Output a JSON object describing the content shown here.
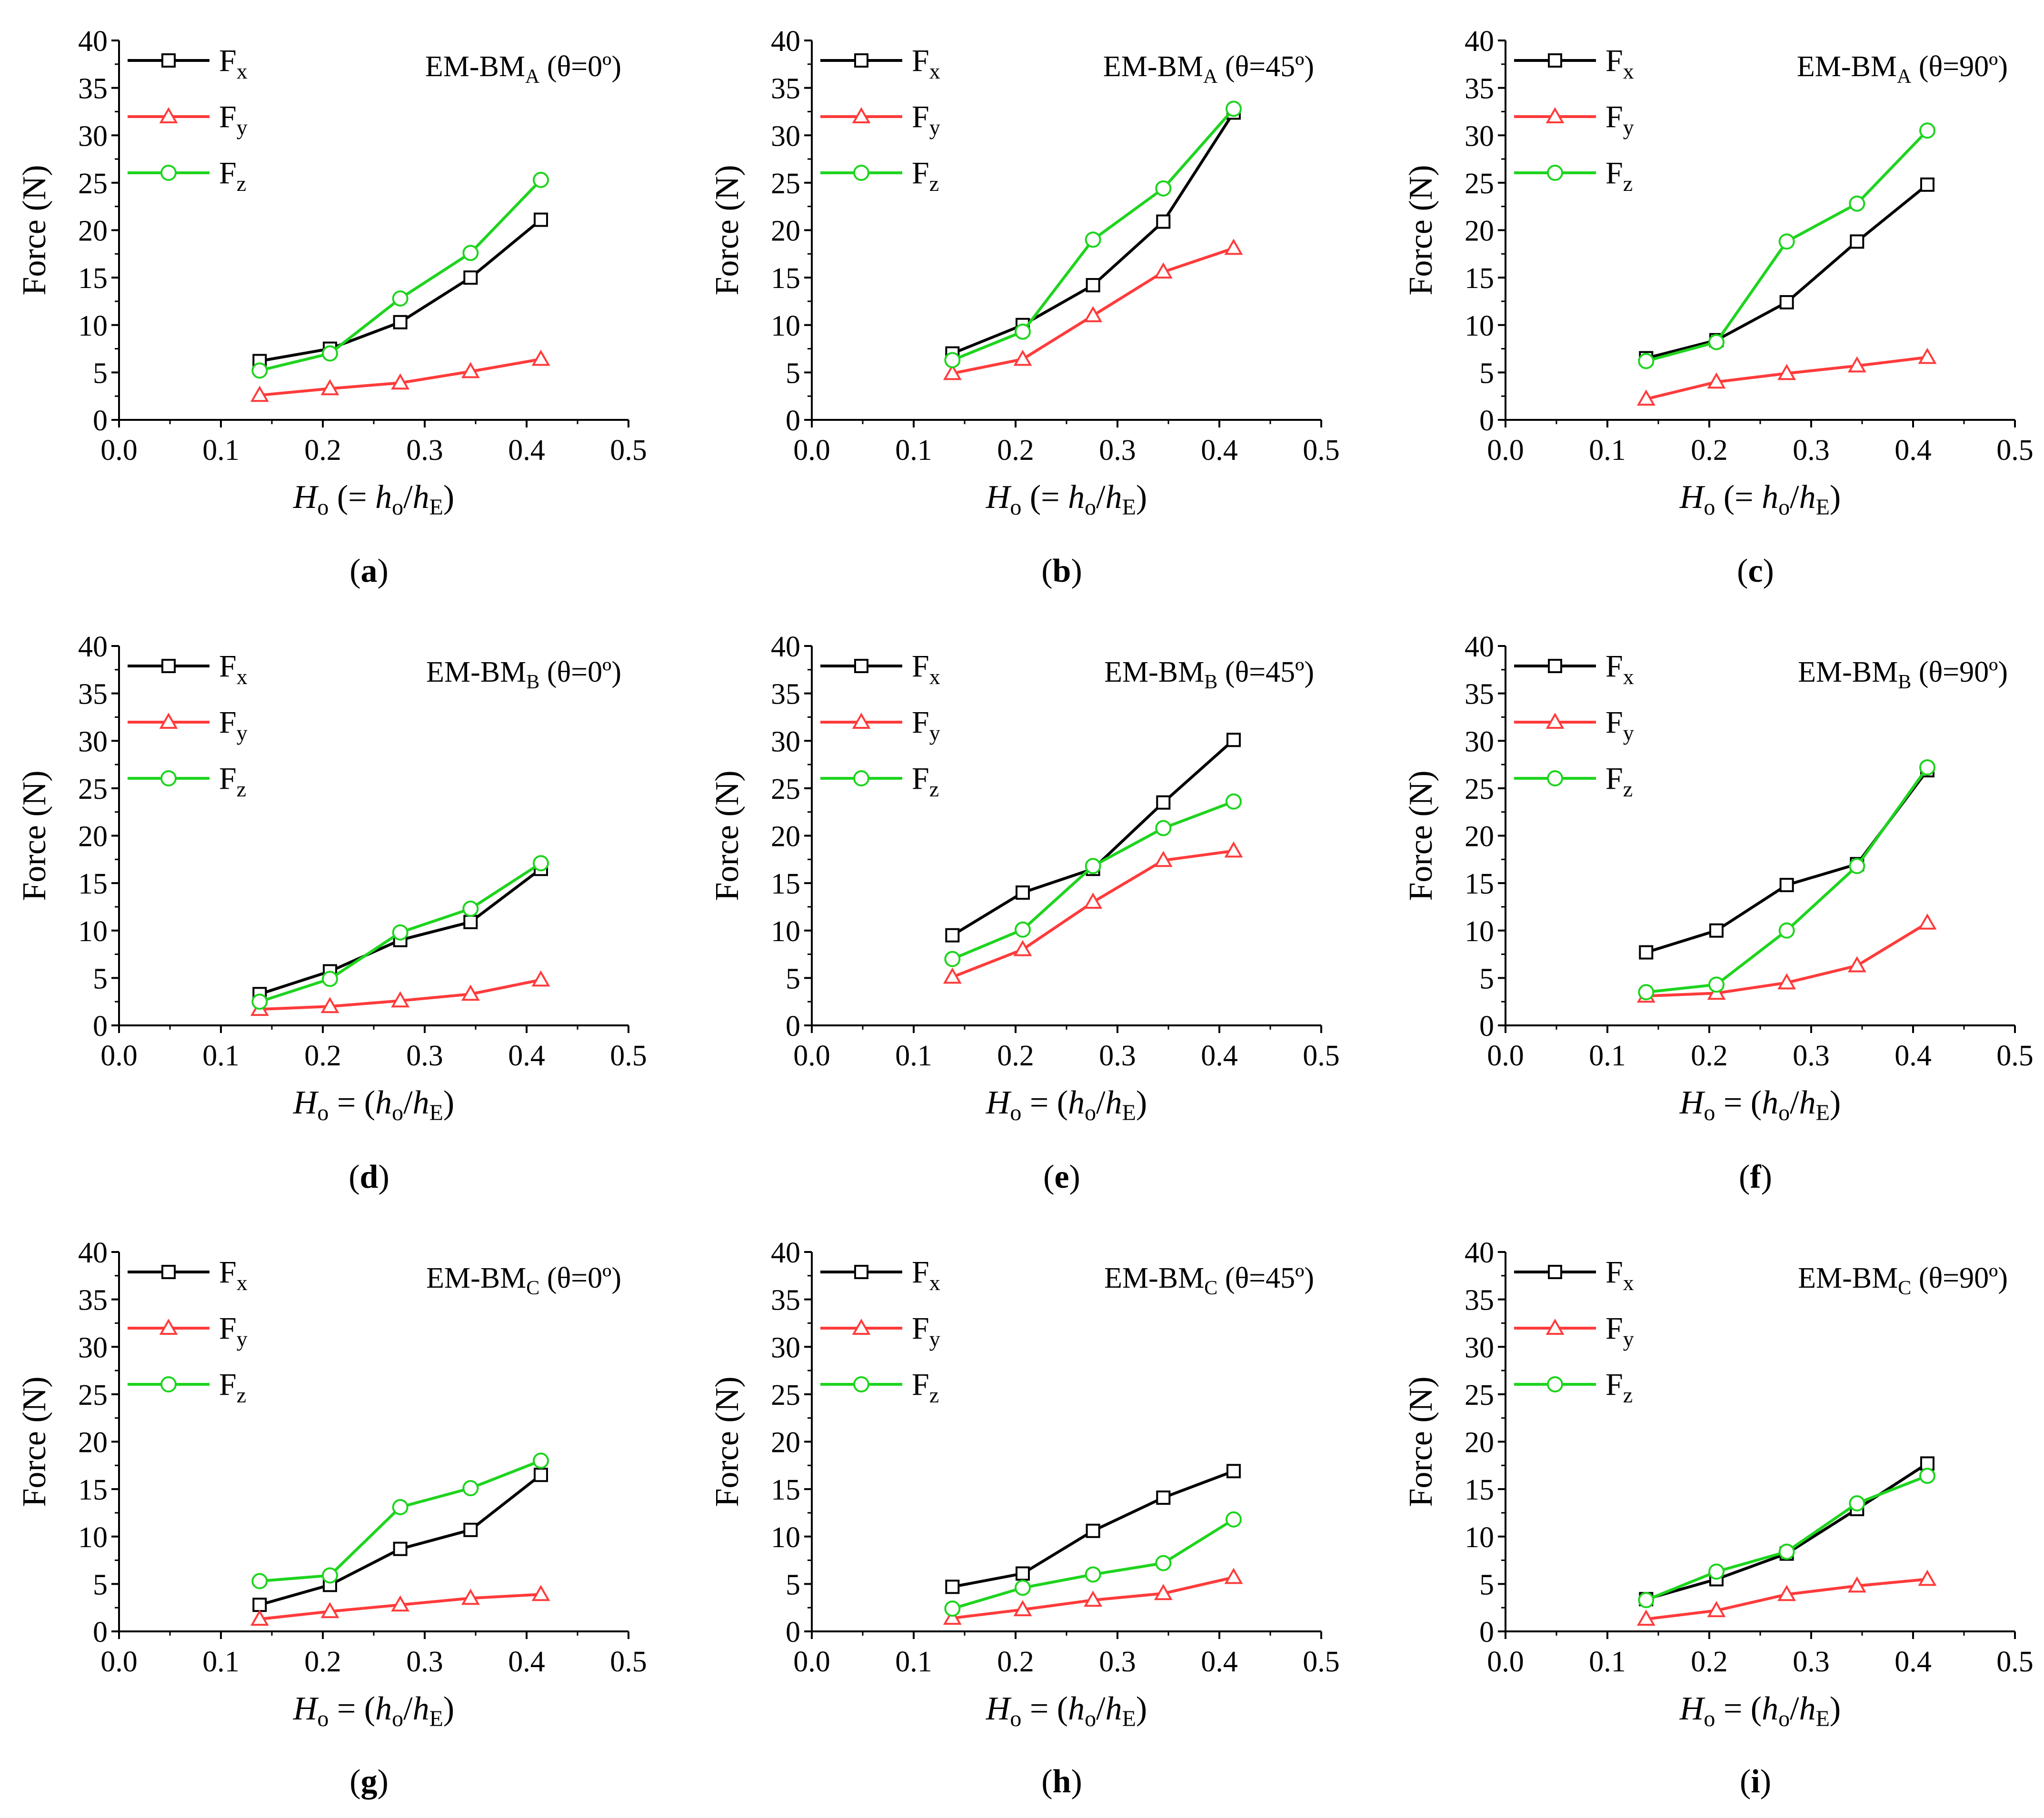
{
  "figure": {
    "series_styles": [
      {
        "name": "Fx",
        "color": "#000000",
        "marker": "square"
      },
      {
        "name": "Fy",
        "color": "#ff3b3b",
        "marker": "triangle"
      },
      {
        "name": "Fz",
        "color": "#1ed41e",
        "marker": "circle"
      }
    ]
  },
  "chart_data": [
    {
      "type": "line",
      "panel_label": "a",
      "title_main": "EM-BM",
      "title_sub": "A",
      "title_angle": "(θ=0º)",
      "ylabel": "Force (N)",
      "xlabel_prefix": "H",
      "xlabel_prefix_sub": "o",
      "xlabel_mid": "(= h",
      "xlabel_mid_sub": "o",
      "xlabel_div": "/h",
      "xlabel_end_sub": "E",
      "xlabel_close": ")",
      "xlim": [
        0.0,
        0.5
      ],
      "ylim": [
        0,
        40
      ],
      "xticks": [
        "0.0",
        "0.1",
        "0.2",
        "0.3",
        "0.4",
        "0.5"
      ],
      "yticks": [
        "0",
        "5",
        "10",
        "15",
        "20",
        "25",
        "30",
        "35",
        "40"
      ],
      "x": [
        0.138,
        0.207,
        0.276,
        0.345,
        0.414
      ],
      "series": [
        {
          "name": "F",
          "sub": "x",
          "values": [
            6.2,
            7.5,
            10.3,
            15.0,
            21.1
          ]
        },
        {
          "name": "F",
          "sub": "y",
          "values": [
            2.6,
            3.3,
            3.9,
            5.1,
            6.4
          ]
        },
        {
          "name": "F",
          "sub": "z",
          "values": [
            5.2,
            7.0,
            12.8,
            17.6,
            25.3
          ]
        }
      ]
    },
    {
      "type": "line",
      "panel_label": "b",
      "title_main": "EM-BM",
      "title_sub": "A",
      "title_angle": "(θ=45º)",
      "ylabel": "Force (N)",
      "xlabel_prefix": "H",
      "xlabel_prefix_sub": "o",
      "xlabel_mid": "(= h",
      "xlabel_mid_sub": "o",
      "xlabel_div": "/h",
      "xlabel_end_sub": "E",
      "xlabel_close": ")",
      "xlim": [
        0.0,
        0.5
      ],
      "ylim": [
        0,
        40
      ],
      "xticks": [
        "0.0",
        "0.1",
        "0.2",
        "0.3",
        "0.4",
        "0.5"
      ],
      "yticks": [
        "0",
        "5",
        "10",
        "15",
        "20",
        "25",
        "30",
        "35",
        "40"
      ],
      "x": [
        0.138,
        0.207,
        0.276,
        0.345,
        0.414
      ],
      "series": [
        {
          "name": "F",
          "sub": "x",
          "values": [
            7.0,
            10.0,
            14.2,
            20.9,
            32.4
          ]
        },
        {
          "name": "F",
          "sub": "y",
          "values": [
            4.9,
            6.4,
            11.0,
            15.6,
            18.1
          ]
        },
        {
          "name": "F",
          "sub": "z",
          "values": [
            6.3,
            9.3,
            19.0,
            24.4,
            32.8
          ]
        }
      ]
    },
    {
      "type": "line",
      "panel_label": "c",
      "title_main": "EM-BM",
      "title_sub": "A",
      "title_angle": "(θ=90º)",
      "ylabel": "Force (N)",
      "xlabel_prefix": "H",
      "xlabel_prefix_sub": "o",
      "xlabel_mid": "(= h",
      "xlabel_mid_sub": "o",
      "xlabel_div": "/h",
      "xlabel_end_sub": "E",
      "xlabel_close": ")",
      "xlim": [
        0.0,
        0.5
      ],
      "ylim": [
        0,
        40
      ],
      "xticks": [
        "0.0",
        "0.1",
        "0.2",
        "0.3",
        "0.4",
        "0.5"
      ],
      "yticks": [
        "0",
        "5",
        "10",
        "15",
        "20",
        "25",
        "30",
        "35",
        "40"
      ],
      "x": [
        0.138,
        0.207,
        0.276,
        0.345,
        0.414
      ],
      "series": [
        {
          "name": "F",
          "sub": "x",
          "values": [
            6.5,
            8.4,
            12.4,
            18.8,
            24.8
          ]
        },
        {
          "name": "F",
          "sub": "y",
          "values": [
            2.2,
            4.0,
            4.9,
            5.7,
            6.6
          ]
        },
        {
          "name": "F",
          "sub": "z",
          "values": [
            6.2,
            8.2,
            18.8,
            22.8,
            30.5
          ]
        }
      ]
    },
    {
      "type": "line",
      "panel_label": "d",
      "title_main": "EM-BM",
      "title_sub": "B",
      "title_angle": "(θ=0º)",
      "ylabel": "Force (N)",
      "xlabel_prefix": "H",
      "xlabel_prefix_sub": "o",
      "xlabel_mid": "= (h",
      "xlabel_mid_sub": "o",
      "xlabel_div": "/h",
      "xlabel_end_sub": "E",
      "xlabel_close": ")",
      "xlim": [
        0.0,
        0.5
      ],
      "ylim": [
        0,
        40
      ],
      "xticks": [
        "0.0",
        "0.1",
        "0.2",
        "0.3",
        "0.4",
        "0.5"
      ],
      "yticks": [
        "0",
        "5",
        "10",
        "15",
        "20",
        "25",
        "30",
        "35",
        "40"
      ],
      "x": [
        0.138,
        0.207,
        0.276,
        0.345,
        0.414
      ],
      "series": [
        {
          "name": "F",
          "sub": "x",
          "values": [
            3.3,
            5.7,
            9.0,
            10.9,
            16.5
          ]
        },
        {
          "name": "F",
          "sub": "y",
          "values": [
            1.7,
            2.0,
            2.6,
            3.3,
            4.8
          ]
        },
        {
          "name": "F",
          "sub": "z",
          "values": [
            2.5,
            4.9,
            9.8,
            12.3,
            17.1
          ]
        }
      ]
    },
    {
      "type": "line",
      "panel_label": "e",
      "title_main": "EM-BM",
      "title_sub": "B",
      "title_angle": "(θ=45º)",
      "ylabel": "Force (N)",
      "xlabel_prefix": "H",
      "xlabel_prefix_sub": "o",
      "xlabel_mid": "= (h",
      "xlabel_mid_sub": "o",
      "xlabel_div": "/h",
      "xlabel_end_sub": "E",
      "xlabel_close": ")",
      "xlim": [
        0.0,
        0.5
      ],
      "ylim": [
        0,
        40
      ],
      "xticks": [
        "0.0",
        "0.1",
        "0.2",
        "0.3",
        "0.4",
        "0.5"
      ],
      "yticks": [
        "0",
        "5",
        "10",
        "15",
        "20",
        "25",
        "30",
        "35",
        "40"
      ],
      "x": [
        0.138,
        0.207,
        0.276,
        0.345,
        0.414
      ],
      "series": [
        {
          "name": "F",
          "sub": "x",
          "values": [
            9.5,
            14.0,
            16.5,
            23.5,
            30.1
          ]
        },
        {
          "name": "F",
          "sub": "y",
          "values": [
            5.1,
            8.0,
            13.0,
            17.4,
            18.4
          ]
        },
        {
          "name": "F",
          "sub": "z",
          "values": [
            7.0,
            10.1,
            16.8,
            20.8,
            23.6
          ]
        }
      ]
    },
    {
      "type": "line",
      "panel_label": "f",
      "title_main": "EM-BM",
      "title_sub": "B",
      "title_angle": "(θ=90º)",
      "ylabel": "Force (N)",
      "xlabel_prefix": "H",
      "xlabel_prefix_sub": "o",
      "xlabel_mid": "= (h",
      "xlabel_mid_sub": "o",
      "xlabel_div": "/h",
      "xlabel_end_sub": "E",
      "xlabel_close": ")",
      "xlim": [
        0.0,
        0.5
      ],
      "ylim": [
        0,
        40
      ],
      "xticks": [
        "0.0",
        "0.1",
        "0.2",
        "0.3",
        "0.4",
        "0.5"
      ],
      "yticks": [
        "0",
        "5",
        "10",
        "15",
        "20",
        "25",
        "30",
        "35",
        "40"
      ],
      "x": [
        0.138,
        0.207,
        0.276,
        0.345,
        0.414
      ],
      "series": [
        {
          "name": "F",
          "sub": "x",
          "values": [
            7.7,
            10.0,
            14.8,
            17.0,
            26.9
          ]
        },
        {
          "name": "F",
          "sub": "y",
          "values": [
            3.1,
            3.4,
            4.5,
            6.3,
            10.8
          ]
        },
        {
          "name": "F",
          "sub": "z",
          "values": [
            3.5,
            4.3,
            10.0,
            16.8,
            27.2
          ]
        }
      ]
    },
    {
      "type": "line",
      "panel_label": "g",
      "title_main": "EM-BM",
      "title_sub": "C",
      "title_angle": "(θ=0º)",
      "ylabel": "Force (N)",
      "xlabel_prefix": "H",
      "xlabel_prefix_sub": "o",
      "xlabel_mid": "= (h",
      "xlabel_mid_sub": "o",
      "xlabel_div": "/h",
      "xlabel_end_sub": "E",
      "xlabel_close": ")",
      "xlim": [
        0.0,
        0.5
      ],
      "ylim": [
        0,
        40
      ],
      "xticks": [
        "0.0",
        "0.1",
        "0.2",
        "0.3",
        "0.4",
        "0.5"
      ],
      "yticks": [
        "0",
        "5",
        "10",
        "15",
        "20",
        "25",
        "30",
        "35",
        "40"
      ],
      "x": [
        0.138,
        0.207,
        0.276,
        0.345,
        0.414
      ],
      "series": [
        {
          "name": "F",
          "sub": "x",
          "values": [
            2.8,
            4.9,
            8.7,
            10.7,
            16.5
          ]
        },
        {
          "name": "F",
          "sub": "y",
          "values": [
            1.3,
            2.1,
            2.8,
            3.5,
            3.9
          ]
        },
        {
          "name": "F",
          "sub": "z",
          "values": [
            5.3,
            5.9,
            13.1,
            15.1,
            18.0
          ]
        }
      ]
    },
    {
      "type": "line",
      "panel_label": "h",
      "title_main": "EM-BM",
      "title_sub": "C",
      "title_angle": "(θ=45º)",
      "ylabel": "Force (N)",
      "xlabel_prefix": "H",
      "xlabel_prefix_sub": "o",
      "xlabel_mid": "= (h",
      "xlabel_mid_sub": "o",
      "xlabel_div": "/h",
      "xlabel_end_sub": "E",
      "xlabel_close": ")",
      "xlim": [
        0.0,
        0.5
      ],
      "ylim": [
        0,
        40
      ],
      "xticks": [
        "0.0",
        "0.1",
        "0.2",
        "0.3",
        "0.4",
        "0.5"
      ],
      "yticks": [
        "0",
        "5",
        "10",
        "15",
        "20",
        "25",
        "30",
        "35",
        "40"
      ],
      "x": [
        0.138,
        0.207,
        0.276,
        0.345,
        0.414
      ],
      "series": [
        {
          "name": "F",
          "sub": "x",
          "values": [
            4.7,
            6.1,
            10.6,
            14.1,
            16.9
          ]
        },
        {
          "name": "F",
          "sub": "y",
          "values": [
            1.4,
            2.3,
            3.3,
            4.0,
            5.7
          ]
        },
        {
          "name": "F",
          "sub": "z",
          "values": [
            2.4,
            4.6,
            6.0,
            7.2,
            11.8
          ]
        }
      ]
    },
    {
      "type": "line",
      "panel_label": "i",
      "title_main": "EM-BM",
      "title_sub": "C",
      "title_angle": "(θ=90º)",
      "ylabel": "Force (N)",
      "xlabel_prefix": "H",
      "xlabel_prefix_sub": "o",
      "xlabel_mid": "= (h",
      "xlabel_mid_sub": "o",
      "xlabel_div": "/h",
      "xlabel_end_sub": "E",
      "xlabel_close": ")",
      "xlim": [
        0.0,
        0.5
      ],
      "ylim": [
        0,
        40
      ],
      "xticks": [
        "0.0",
        "0.1",
        "0.2",
        "0.3",
        "0.4",
        "0.5"
      ],
      "yticks": [
        "0",
        "5",
        "10",
        "15",
        "20",
        "25",
        "30",
        "35",
        "40"
      ],
      "x": [
        0.138,
        0.207,
        0.276,
        0.345,
        0.414
      ],
      "series": [
        {
          "name": "F",
          "sub": "x",
          "values": [
            3.4,
            5.5,
            8.2,
            12.9,
            17.7
          ]
        },
        {
          "name": "F",
          "sub": "y",
          "values": [
            1.3,
            2.2,
            3.9,
            4.8,
            5.5
          ]
        },
        {
          "name": "F",
          "sub": "z",
          "values": [
            3.3,
            6.3,
            8.4,
            13.5,
            16.4
          ]
        }
      ]
    }
  ]
}
